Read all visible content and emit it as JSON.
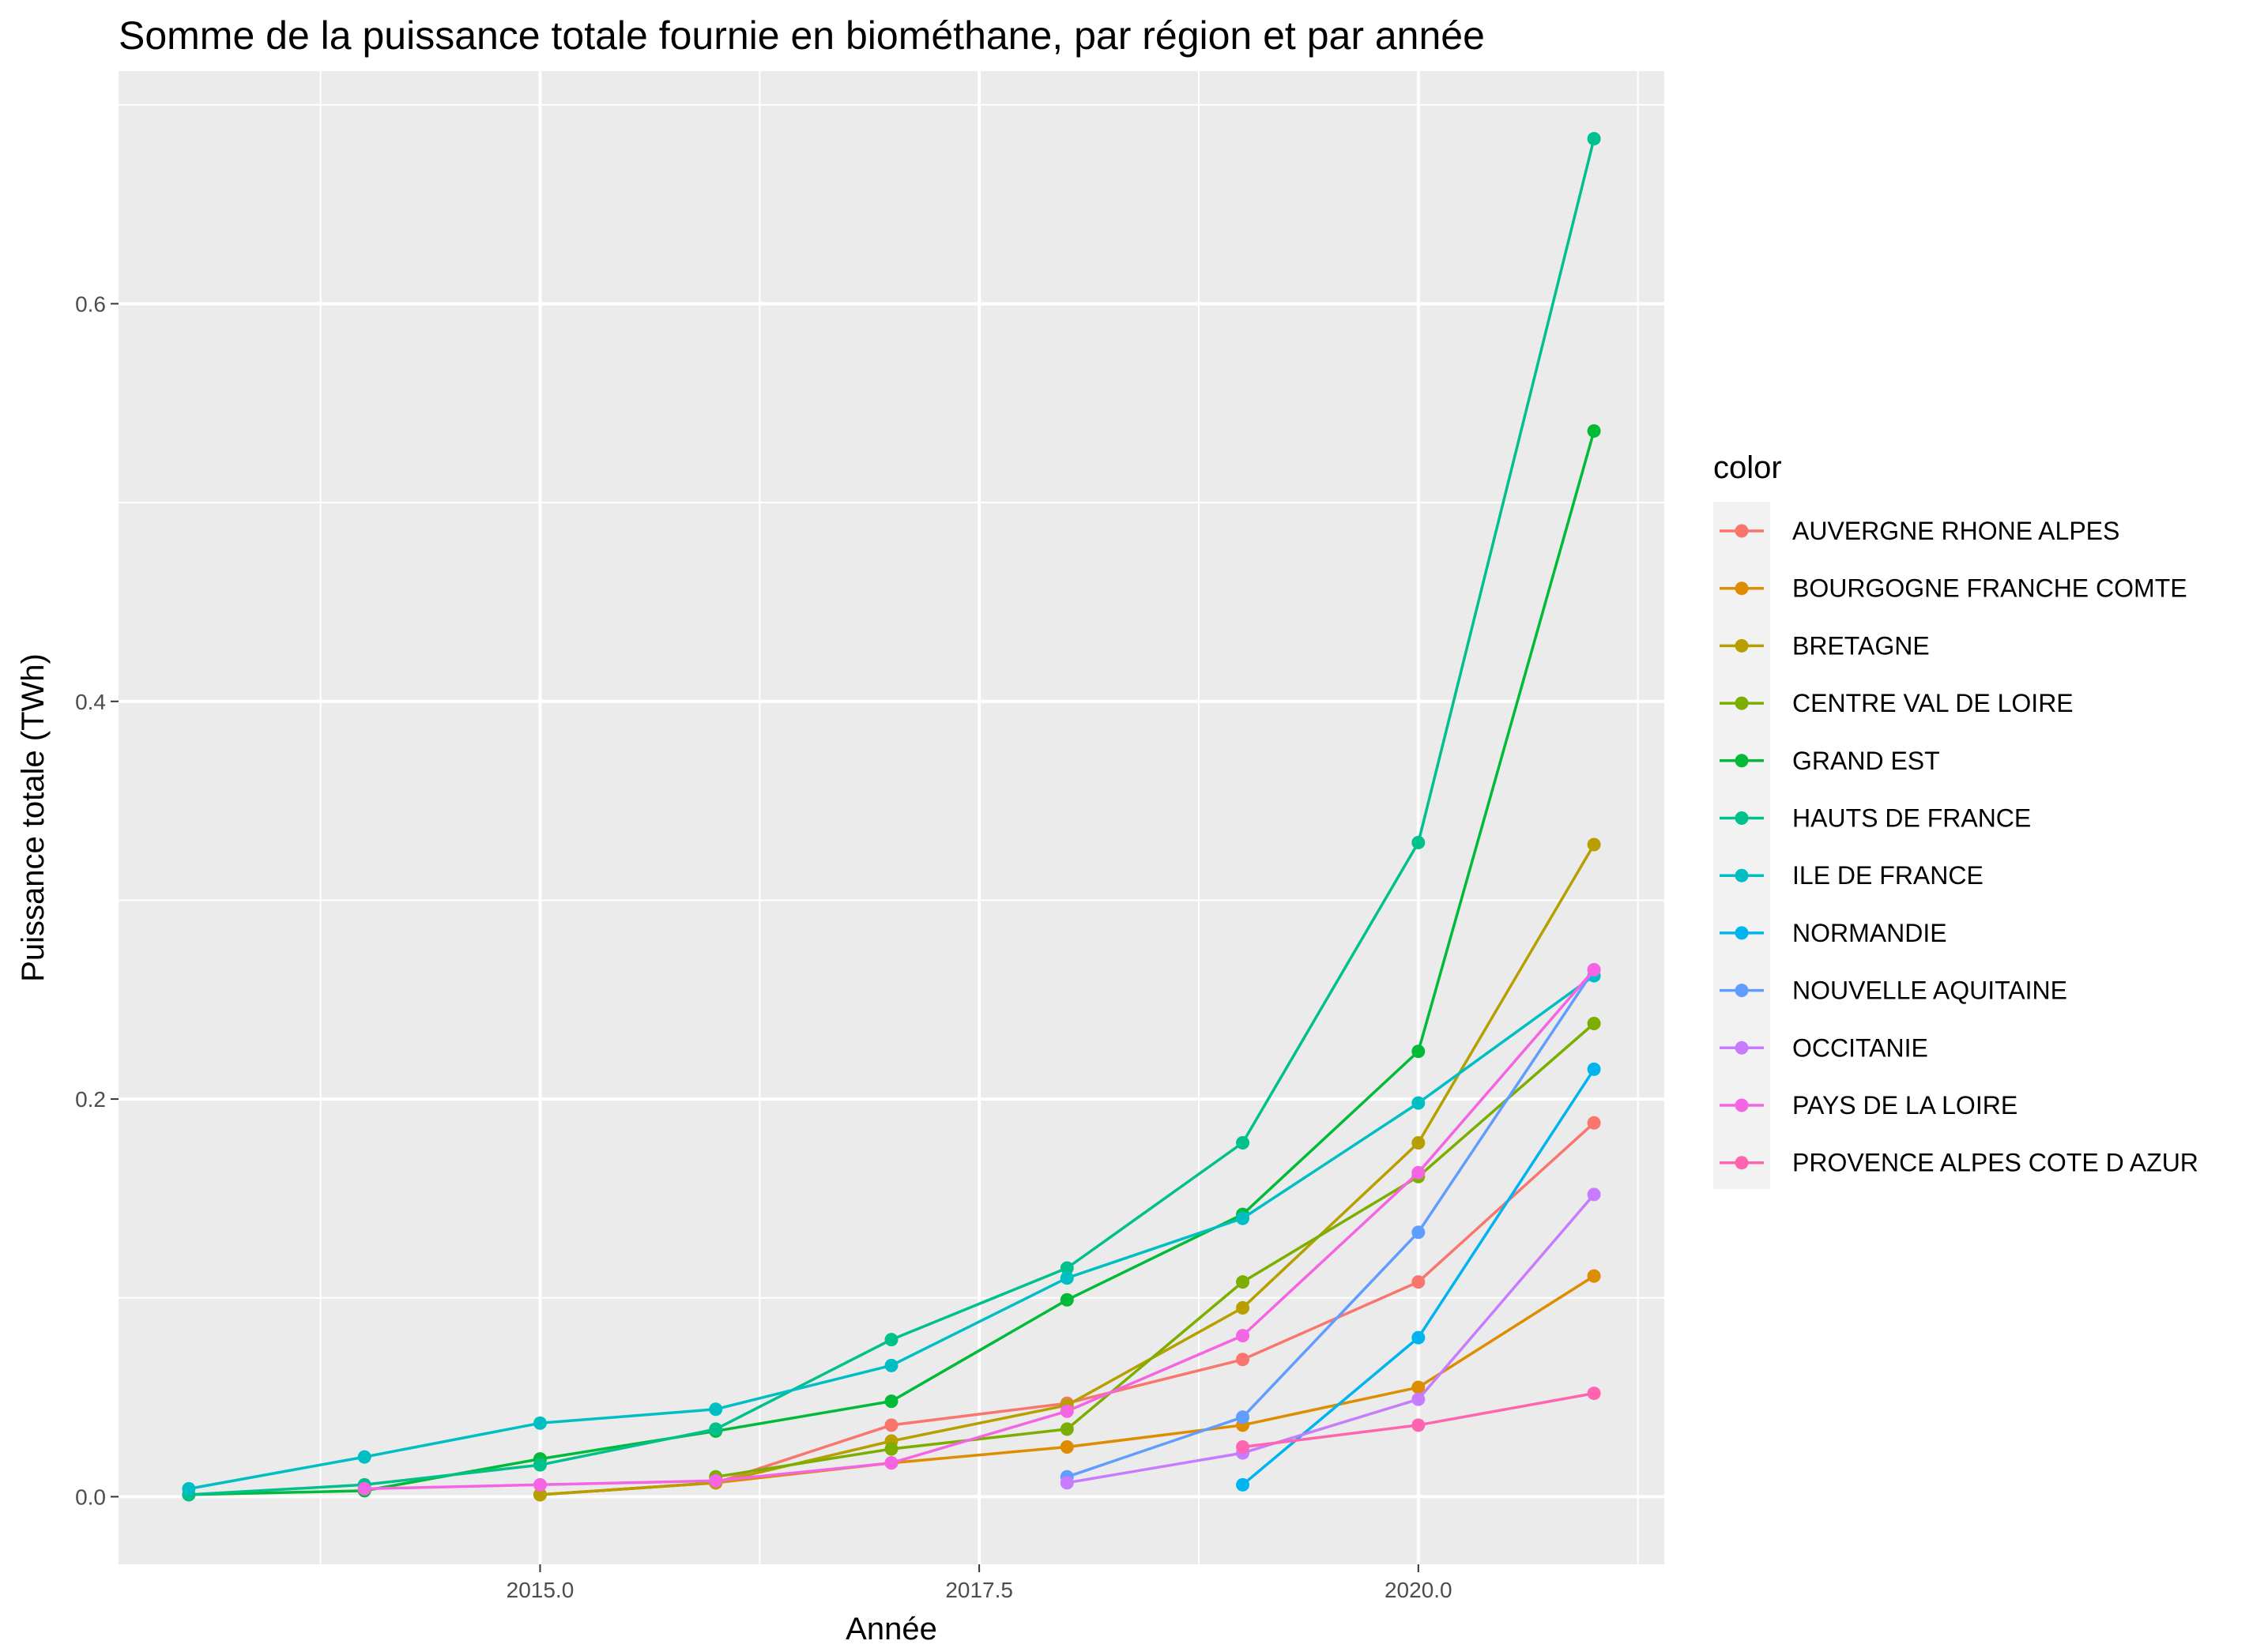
{
  "chart_data": {
    "type": "line",
    "title": "Somme de la puissance totale fournie en biométhane, par région et par année",
    "xlabel": "Année",
    "ylabel": "Puissance totale (TWh)",
    "xlim": [
      2012.6,
      2021.4
    ],
    "ylim": [
      -0.034,
      0.717
    ],
    "x_ticks": [
      2015,
      2017.5,
      2020
    ],
    "x_tick_labels": [
      "2015.0",
      "2017.5",
      "2020.0"
    ],
    "y_ticks": [
      0,
      0.2,
      0.4,
      0.6
    ],
    "y_tick_labels": [
      "0.0",
      "0.2",
      "0.4",
      "0.6"
    ],
    "grid": true,
    "legend": {
      "title": "color",
      "position": "right"
    },
    "series": [
      {
        "name": "AUVERGNE RHONE ALPES",
        "color": "#F8766D",
        "points": [
          [
            2015,
            0.001
          ],
          [
            2016,
            0.007
          ],
          [
            2017,
            0.036
          ],
          [
            2018,
            0.047
          ],
          [
            2019,
            0.069
          ],
          [
            2020,
            0.108
          ],
          [
            2021,
            0.188
          ]
        ]
      },
      {
        "name": "BOURGOGNE FRANCHE COMTE",
        "color": "#DE8C00",
        "points": [
          [
            2015,
            0.001
          ],
          [
            2016,
            0.007
          ],
          [
            2017,
            0.017
          ],
          [
            2018,
            0.025
          ],
          [
            2019,
            0.036
          ],
          [
            2020,
            0.055
          ],
          [
            2021,
            0.111
          ]
        ]
      },
      {
        "name": "BRETAGNE",
        "color": "#B79F00",
        "points": [
          [
            2015,
            0.001
          ],
          [
            2016,
            0.007
          ],
          [
            2017,
            0.028
          ],
          [
            2018,
            0.046
          ],
          [
            2019,
            0.095
          ],
          [
            2020,
            0.178
          ],
          [
            2021,
            0.328
          ]
        ]
      },
      {
        "name": "CENTRE VAL DE LOIRE",
        "color": "#7CAE00",
        "points": [
          [
            2016,
            0.01
          ],
          [
            2017,
            0.024
          ],
          [
            2018,
            0.034
          ],
          [
            2019,
            0.108
          ],
          [
            2020,
            0.161
          ],
          [
            2021,
            0.238
          ]
        ]
      },
      {
        "name": "GRAND EST",
        "color": "#00BA38",
        "points": [
          [
            2013,
            0.001
          ],
          [
            2014,
            0.003
          ],
          [
            2015,
            0.019
          ],
          [
            2016,
            0.033
          ],
          [
            2017,
            0.048
          ],
          [
            2018,
            0.099
          ],
          [
            2019,
            0.142
          ],
          [
            2020,
            0.224
          ],
          [
            2021,
            0.536
          ]
        ]
      },
      {
        "name": "HAUTS DE FRANCE",
        "color": "#00C08B",
        "points": [
          [
            2013,
            0.001
          ],
          [
            2014,
            0.006
          ],
          [
            2015,
            0.016
          ],
          [
            2016,
            0.034
          ],
          [
            2017,
            0.079
          ],
          [
            2018,
            0.115
          ],
          [
            2019,
            0.178
          ],
          [
            2020,
            0.329
          ],
          [
            2021,
            0.683
          ]
        ]
      },
      {
        "name": "ILE DE FRANCE",
        "color": "#00BFC4",
        "points": [
          [
            2013,
            0.004
          ],
          [
            2014,
            0.02
          ],
          [
            2015,
            0.037
          ],
          [
            2016,
            0.044
          ],
          [
            2017,
            0.066
          ],
          [
            2018,
            0.11
          ],
          [
            2019,
            0.14
          ],
          [
            2020,
            0.198
          ],
          [
            2021,
            0.262
          ]
        ]
      },
      {
        "name": "NORMANDIE",
        "color": "#00B4F0",
        "points": [
          [
            2019,
            0.006
          ],
          [
            2020,
            0.08
          ],
          [
            2021,
            0.215
          ]
        ]
      },
      {
        "name": "NOUVELLE AQUITAINE",
        "color": "#619CFF",
        "points": [
          [
            2018,
            0.01
          ],
          [
            2019,
            0.04
          ],
          [
            2020,
            0.133
          ],
          [
            2021,
            0.265
          ]
        ]
      },
      {
        "name": "OCCITANIE",
        "color": "#C77CFF",
        "points": [
          [
            2018,
            0.007
          ],
          [
            2019,
            0.022
          ],
          [
            2020,
            0.049
          ],
          [
            2021,
            0.152
          ]
        ]
      },
      {
        "name": "PAYS DE LA LOIRE",
        "color": "#F564E3",
        "points": [
          [
            2014,
            0.004
          ],
          [
            2015,
            0.006
          ],
          [
            2016,
            0.008
          ],
          [
            2017,
            0.017
          ],
          [
            2018,
            0.043
          ],
          [
            2019,
            0.081
          ],
          [
            2020,
            0.163
          ],
          [
            2021,
            0.265
          ]
        ]
      },
      {
        "name": "PROVENCE ALPES COTE D AZUR",
        "color": "#FF64B0",
        "points": [
          [
            2019,
            0.025
          ],
          [
            2020,
            0.036
          ],
          [
            2021,
            0.052
          ]
        ]
      }
    ]
  }
}
